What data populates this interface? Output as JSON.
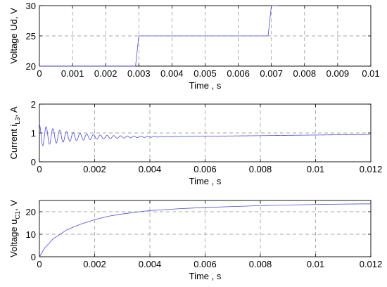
{
  "chart_data": [
    {
      "type": "line",
      "xlabel": "Time , s",
      "ylabel": "Voltage Ud, V",
      "xlim": [
        0,
        0.01
      ],
      "ylim": [
        20,
        30
      ],
      "xticks": [
        "0",
        "0.001",
        "0.002",
        "0.003",
        "0.004",
        "0.005",
        "0.006",
        "0.007",
        "0.008",
        "0.009",
        "0.01"
      ],
      "yticks": [
        "20",
        "25",
        "30"
      ],
      "xtick_values": [
        0,
        0.001,
        0.002,
        0.003,
        0.004,
        0.005,
        0.006,
        0.007,
        0.008,
        0.009,
        0.01
      ],
      "ytick_values": [
        20,
        25,
        30
      ],
      "grid": true,
      "series": [
        {
          "color": "#4a4ad8",
          "x": [
            0,
            0.0029,
            0.003,
            0.0069,
            0.007,
            0.0072
          ],
          "y": [
            20,
            20,
            25,
            25,
            30,
            30
          ]
        }
      ]
    },
    {
      "type": "line",
      "xlabel": "Time , s",
      "ylabel_main": "Current i",
      "ylabel_sub": "L3",
      "ylabel_tail": ", A",
      "xlim": [
        0,
        0.012
      ],
      "ylim": [
        0,
        2
      ],
      "xticks": [
        "0",
        "0.002",
        "0.004",
        "0.006",
        "0.008",
        "0.01",
        "0.012"
      ],
      "yticks": [
        "0",
        "1",
        "2"
      ],
      "xtick_values": [
        0,
        0.002,
        0.004,
        0.006,
        0.008,
        0.01,
        0.012
      ],
      "ytick_values": [
        0,
        1,
        2
      ],
      "grid": true,
      "series": [
        {
          "color": "#4a4ad8",
          "signal": {
            "kind": "damped_oscillation",
            "start": 1.2,
            "settle_start": 0.82,
            "settle_end": 0.95,
            "amplitude": 0.38,
            "decay_time": 0.0013,
            "period": 0.000245,
            "t_end": 0.012
          }
        }
      ]
    },
    {
      "type": "line",
      "xlabel": "Time , s",
      "ylabel_main": "Voltage u",
      "ylabel_sub": "C1",
      "ylabel_tail": ", V",
      "xlim": [
        0,
        0.012
      ],
      "ylim": [
        0,
        25
      ],
      "xticks": [
        "0",
        "0.002",
        "0.004",
        "0.006",
        "0.008",
        "0.01",
        "0.012"
      ],
      "yticks": [
        "0",
        "10",
        "20"
      ],
      "xtick_values": [
        0,
        0.002,
        0.004,
        0.006,
        0.008,
        0.01,
        0.012
      ],
      "ytick_values": [
        0,
        10,
        20
      ],
      "grid": true,
      "series": [
        {
          "color": "#4a4ad8",
          "x": [
            0,
            0.0002,
            0.0005,
            0.001,
            0.0015,
            0.002,
            0.0025,
            0.003,
            0.0035,
            0.004,
            0.005,
            0.006,
            0.007,
            0.008,
            0.009,
            0.01,
            0.011,
            0.012
          ],
          "y": [
            0,
            4,
            8,
            12,
            14.5,
            16.5,
            18,
            19,
            19.8,
            20.5,
            21.3,
            21.9,
            22.3,
            22.7,
            23,
            23.2,
            23.4,
            23.5
          ]
        }
      ]
    }
  ]
}
